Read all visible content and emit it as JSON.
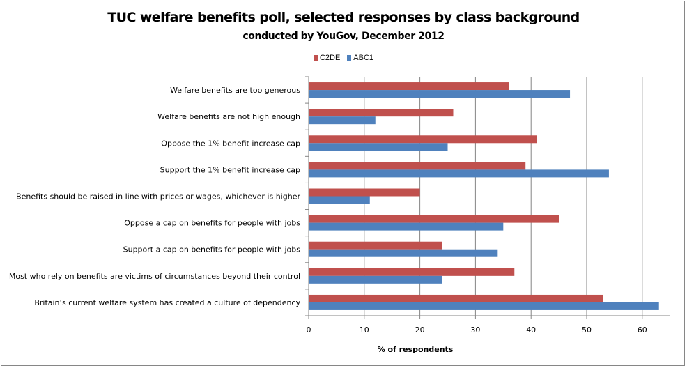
{
  "chart_data": {
    "type": "bar",
    "orientation": "horizontal",
    "title": "TUC welfare benefits poll, selected responses by class background",
    "subtitle": "conducted by YouGov, December 2012",
    "xlabel": "% of respondents",
    "ylabel": "",
    "xlim": [
      0,
      65
    ],
    "xticks": [
      0,
      10,
      20,
      30,
      40,
      50,
      60
    ],
    "grid": true,
    "legend_position": "top",
    "categories": [
      "Welfare benefits are too generous",
      "Welfare benefits are not high enough",
      "Oppose the 1% benefit increase cap",
      "Support the 1% benefit increase cap",
      "Benefits should be raised in line with prices or wages,  whichever is higher",
      "Oppose a cap on benefits for people with  jobs",
      "Support a cap on benefits for people with jobs",
      "Most who rely on benefits are victims of circumstances beyond their control",
      "Britain’s current welfare system has created a culture of dependency"
    ],
    "series": [
      {
        "name": "C2DE",
        "color": "#C0504D",
        "values": [
          36,
          26,
          41,
          39,
          20,
          45,
          24,
          37,
          53
        ]
      },
      {
        "name": "ABC1",
        "color": "#4F81BD",
        "values": [
          47,
          12,
          25,
          54,
          11,
          35,
          34,
          24,
          63
        ]
      }
    ]
  }
}
